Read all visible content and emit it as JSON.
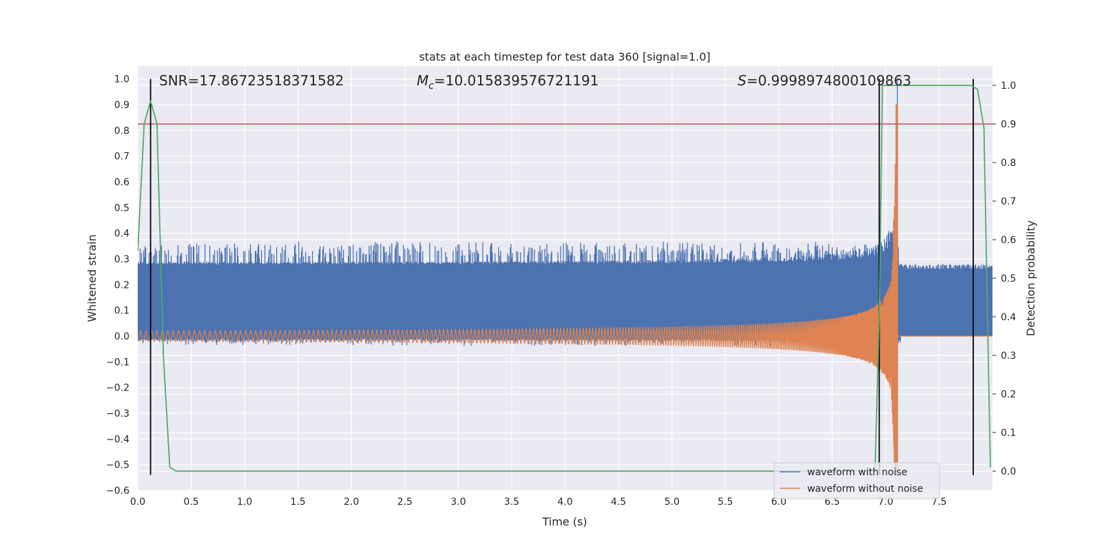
{
  "chart_data": {
    "type": "line",
    "title": "stats at each timestep for test data 360 [signal=1.0]",
    "xlabel": "Time (s)",
    "ylabel": "Whitened strain",
    "y2label": "Detection probability",
    "xlim": [
      0.0,
      8.0
    ],
    "ylim": [
      -0.6,
      1.05
    ],
    "y2lim": [
      -0.05,
      1.05
    ],
    "grid": true,
    "style": "seaborn-darkgrid",
    "x_ticks": [
      "0.0",
      "0.5",
      "1.0",
      "1.5",
      "2.0",
      "2.5",
      "3.0",
      "3.5",
      "4.0",
      "4.5",
      "5.0",
      "5.5",
      "6.0",
      "6.5",
      "7.0",
      "7.5"
    ],
    "y_ticks": [
      "1.0",
      "0.9",
      "0.8",
      "0.7",
      "0.6",
      "0.5",
      "0.4",
      "0.3",
      "0.2",
      "0.1",
      "0.0",
      "−0.1",
      "−0.2",
      "−0.3",
      "−0.4",
      "−0.5",
      "−0.6"
    ],
    "y2_ticks": [
      "1.0",
      "0.9",
      "0.8",
      "0.7",
      "0.6",
      "0.5",
      "0.4",
      "0.3",
      "0.2",
      "0.1",
      "0.0"
    ],
    "annotations": {
      "snr": "SNR=17.86723518371582",
      "mc_symbol": "M",
      "mc_sub": "c",
      "mc_value": "=10.015839576721191",
      "s_symbol": "S",
      "s_value": "=0.9998974800109863"
    },
    "legend": {
      "position": "lower-right",
      "entries": [
        {
          "label": "waveform with noise",
          "color": "#4c72b0"
        },
        {
          "label": "waveform without noise",
          "color": "#dd8452"
        }
      ]
    },
    "series": [
      {
        "name": "waveform with noise",
        "axis": "left",
        "color": "#4c72b0",
        "kind": "noisy band",
        "band_low": -0.01,
        "band_high": 0.27,
        "chirp_peak_time": 7.11,
        "chirp_peak_value": 1.0
      },
      {
        "name": "waveform without noise",
        "axis": "left",
        "color": "#dd8452",
        "kind": "chirp",
        "t_merge": 7.11,
        "start_amplitude": 0.02,
        "max_value": 0.9,
        "min_value": -0.54,
        "post_merger_value": 0.0
      },
      {
        "name": "detection probability",
        "axis": "right",
        "color": "#55a868",
        "x": [
          0.0,
          0.06,
          0.12,
          0.18,
          0.24,
          0.3,
          0.36,
          0.42,
          6.9,
          6.94,
          6.97,
          7.0,
          7.06,
          7.8,
          7.86,
          7.92,
          7.98
        ],
        "y": [
          0.57,
          0.9,
          0.96,
          0.9,
          0.3,
          0.01,
          0.0,
          0.0,
          0.0,
          0.4,
          1.0,
          1.0,
          1.0,
          1.0,
          0.99,
          0.89,
          0.01
        ]
      }
    ],
    "threshold": {
      "value": 0.9,
      "axis": "right",
      "color": "#c44e52"
    },
    "vertical_lines": [
      {
        "x": 0.12,
        "y_from": -0.54,
        "y_to": 1.0
      },
      {
        "x": 6.94,
        "y_from": -0.54,
        "y_to": 1.0
      },
      {
        "x": 7.82,
        "y_from": -0.54,
        "y_to": 1.0
      }
    ]
  }
}
